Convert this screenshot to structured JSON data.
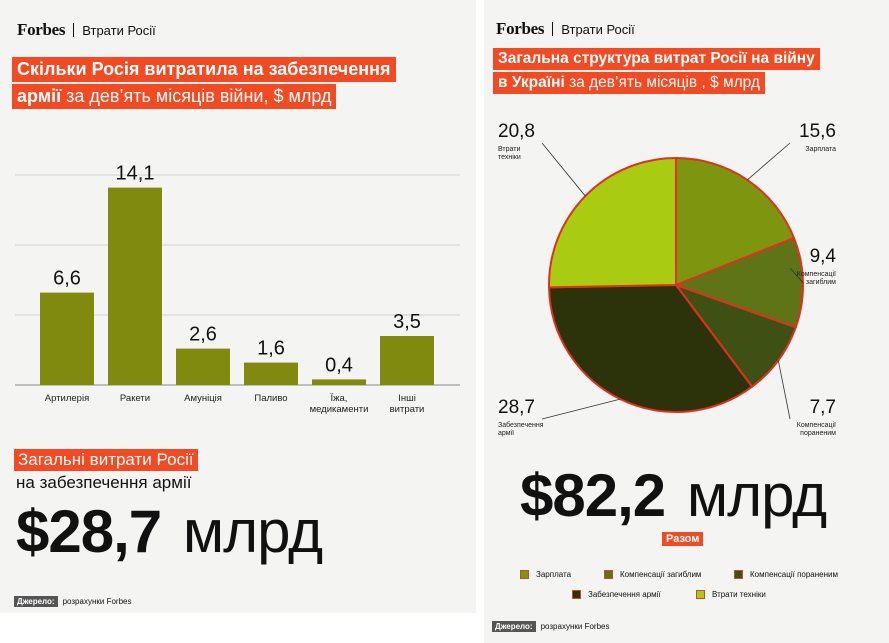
{
  "left": {
    "brand": "Forbes",
    "section": "Втрати Росії",
    "headline": {
      "line1": "Скільки Росія витратила на забезпечення",
      "line2_bold": "армії",
      "line2_rest": " за дев’ять місяців війни, $ млрд"
    },
    "total_tag": "Загальні витрати Росії",
    "total_sub": "на забезпечення армії",
    "total_big": "$28,7",
    "total_unit": "млрд",
    "source_label": "Джерело:",
    "source_text": "розрахунки Forbes"
  },
  "right": {
    "brand": "Forbes",
    "section": "Втрати Росії",
    "headline": {
      "line1": "Загальна структура витрат Росії на війну",
      "line2_bold": "в Україні",
      "line2_rest": " за дев’ять місяців , $ млрд"
    },
    "total_big": "$82,2",
    "total_unit": "млрд",
    "total_tag": "Разом",
    "source_label": "Джерело:",
    "source_text": "розрахунки Forbes"
  },
  "chart_data": [
    {
      "type": "bar",
      "title": "Скільки Росія витратила на забезпечення армії за дев’ять місяців війни, $ млрд",
      "categories": [
        "Артилерія",
        "Ракети",
        "Амуніція",
        "Паливо",
        "Їжа, медикаменти",
        "Інші витрати"
      ],
      "category_lines": [
        [
          "Артилерія"
        ],
        [
          "Ракети"
        ],
        [
          "Амуніція"
        ],
        [
          "Паливо"
        ],
        [
          "Їжа,",
          "медикаменти"
        ],
        [
          "Інші",
          "витрати"
        ]
      ],
      "values": [
        6.6,
        14.1,
        2.6,
        1.6,
        0.4,
        3.5
      ],
      "value_labels": [
        "6,6",
        "14,1",
        "2,6",
        "1,6",
        "0,4",
        "3,5"
      ],
      "ylim": [
        0,
        15
      ],
      "bar_color": "#808a0e",
      "grid": true
    },
    {
      "type": "pie",
      "title": "Загальна структура витрат Росії на війну в Україні за дев’ять місяців , $ млрд",
      "labels": [
        "Зарплата",
        "Компенсації загиблим",
        "Компенсації пораненим",
        "Забезпечення армії",
        "Втрати техніки"
      ],
      "label_lines": [
        [
          "Зарплата"
        ],
        [
          "Компенсації",
          "загиблим"
        ],
        [
          "Компенсації",
          "пораненим"
        ],
        [
          "Забезпечення",
          "армії"
        ],
        [
          "Втрати",
          "техніки"
        ]
      ],
      "values": [
        15.6,
        9.4,
        7.7,
        28.7,
        20.8
      ],
      "value_labels": [
        "15,6",
        "9,4",
        "7,7",
        "28,7",
        "20,8"
      ],
      "colors": [
        "#7e9510",
        "#5e7416",
        "#3e5014",
        "#2c3209",
        "#a9cc12"
      ],
      "edge_color": "#e0301e",
      "legend_placement": "bottom"
    }
  ]
}
